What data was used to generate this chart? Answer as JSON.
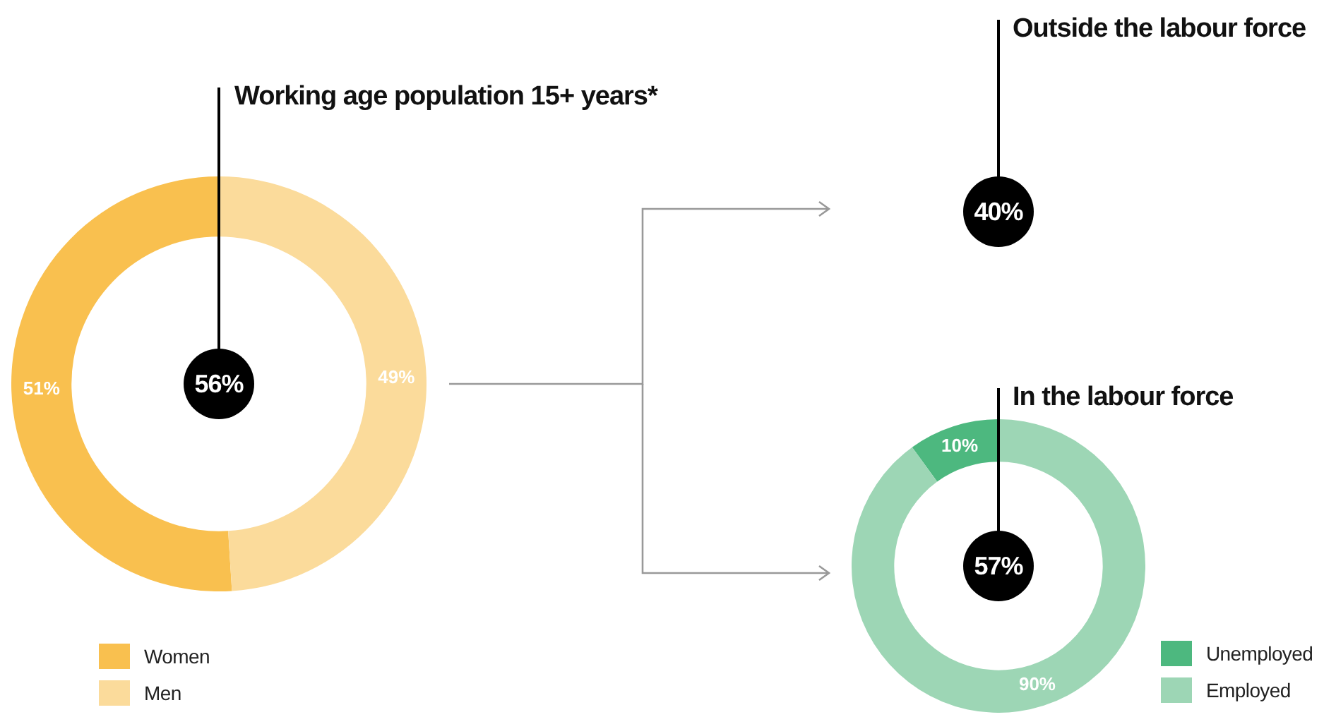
{
  "chart_data": [
    {
      "type": "donut",
      "title": "Working age population 15+ years*",
      "categories": [
        "Women",
        "Men"
      ],
      "values": [
        51,
        49
      ],
      "colors": [
        "#f9c04f",
        "#fbdb9b"
      ],
      "value_labels": [
        "51%",
        "49%"
      ],
      "annotations": [
        "56%"
      ],
      "legend": "bottom left"
    },
    {
      "type": "other",
      "title": "Outside the labour force",
      "annotations": [
        "40%"
      ]
    },
    {
      "type": "donut",
      "title": "In the labour force",
      "categories": [
        "Unemployed",
        "Employed"
      ],
      "values": [
        10,
        90
      ],
      "colors": [
        "#4db87f",
        "#9dd6b5"
      ],
      "value_labels": [
        "10%",
        "90%"
      ],
      "annotations": [
        "57%"
      ],
      "legend": "bottom right"
    }
  ]
}
